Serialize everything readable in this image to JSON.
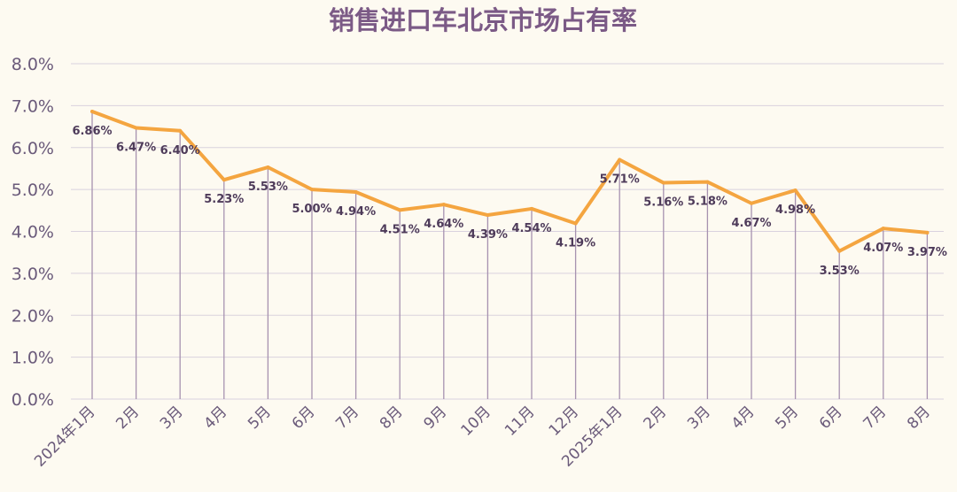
{
  "chart_data": {
    "type": "line",
    "title": "销售进口车北京市场占有率",
    "xlabel": "",
    "ylabel": "",
    "categories": [
      "2024年1月",
      "2月",
      "3月",
      "4月",
      "5月",
      "6月",
      "7月",
      "8月",
      "9月",
      "10月",
      "11月",
      "12月",
      "2025年1月",
      "2月",
      "3月",
      "4月",
      "5月",
      "6月",
      "7月",
      "8月"
    ],
    "series": [
      {
        "values": [
          6.86,
          6.47,
          6.4,
          5.23,
          5.53,
          5.0,
          4.94,
          4.51,
          4.64,
          4.39,
          4.54,
          4.19,
          5.71,
          5.16,
          5.18,
          4.67,
          4.98,
          3.53,
          4.07,
          3.97
        ],
        "labels": [
          "6.86%",
          "6.47%",
          "6.40%",
          "5.23%",
          "5.53%",
          "5.00%",
          "4.94%",
          "4.51%",
          "4.64%",
          "4.39%",
          "4.54%",
          "4.19%",
          "5.71%",
          "5.16%",
          "5.18%",
          "4.67%",
          "4.98%",
          "3.53%",
          "4.07%",
          "3.97%"
        ]
      }
    ],
    "ylim": [
      0,
      8
    ],
    "yticks": [
      "0.0%",
      "1.0%",
      "2.0%",
      "3.0%",
      "4.0%",
      "5.0%",
      "6.0%",
      "7.0%",
      "8.0%"
    ],
    "grid": true,
    "drop_lines": true,
    "colors": {
      "line": "#f4a540",
      "drop_line": "#a792b0",
      "grid": "#d9d2de",
      "title": "#7b5a86",
      "tick": "#6a5a7a",
      "label": "#4e3b5a",
      "background": "#fdfaf1"
    }
  }
}
